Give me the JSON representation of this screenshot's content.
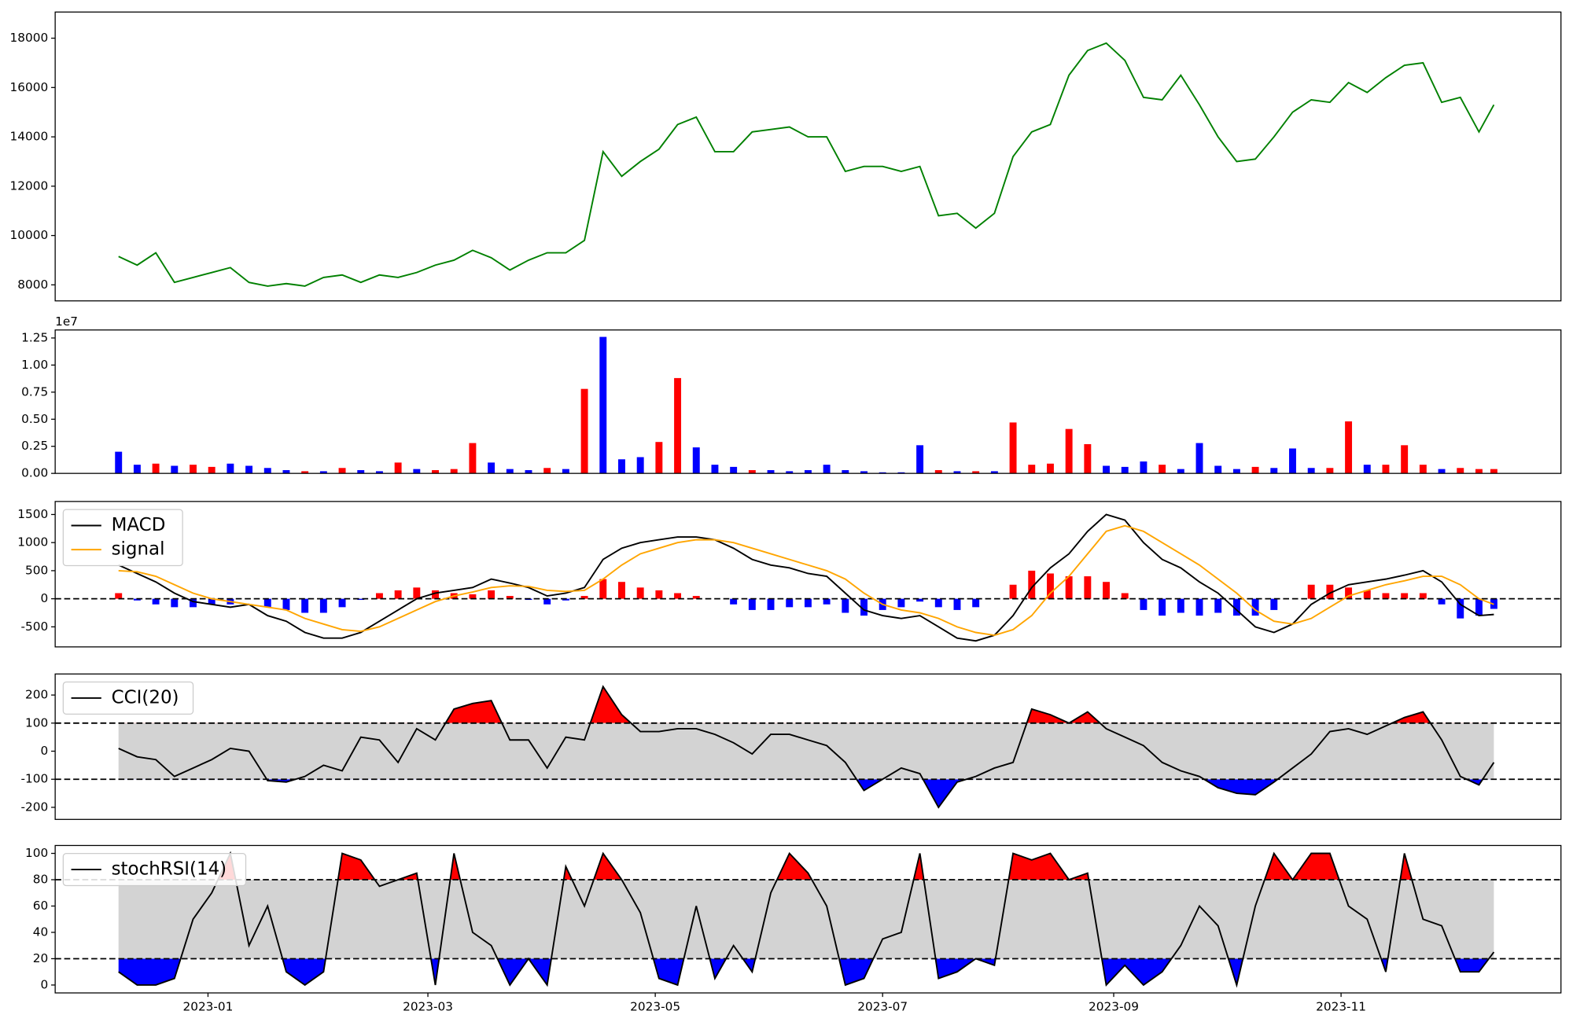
{
  "chart_data": [
    {
      "type": "line",
      "x": [
        "2022-12-08",
        "2022-12-13",
        "2022-12-18",
        "2022-12-23",
        "2022-12-28",
        "2023-01-02",
        "2023-01-07",
        "2023-01-12",
        "2023-01-17",
        "2023-01-22",
        "2023-01-27",
        "2023-02-01",
        "2023-02-06",
        "2023-02-11",
        "2023-02-16",
        "2023-02-21",
        "2023-02-26",
        "2023-03-03",
        "2023-03-08",
        "2023-03-13",
        "2023-03-18",
        "2023-03-23",
        "2023-03-28",
        "2023-04-02",
        "2023-04-07",
        "2023-04-12",
        "2023-04-17",
        "2023-04-22",
        "2023-04-27",
        "2023-05-02",
        "2023-05-07",
        "2023-05-12",
        "2023-05-17",
        "2023-05-22",
        "2023-05-27",
        "2023-06-01",
        "2023-06-06",
        "2023-06-11",
        "2023-06-16",
        "2023-06-21",
        "2023-06-26",
        "2023-07-01",
        "2023-07-06",
        "2023-07-11",
        "2023-07-16",
        "2023-07-21",
        "2023-07-26",
        "2023-07-31",
        "2023-08-05",
        "2023-08-10",
        "2023-08-15",
        "2023-08-20",
        "2023-08-25",
        "2023-08-30",
        "2023-09-04",
        "2023-09-09",
        "2023-09-14",
        "2023-09-19",
        "2023-09-24",
        "2023-09-29",
        "2023-10-04",
        "2023-10-09",
        "2023-10-14",
        "2023-10-19",
        "2023-10-24",
        "2023-10-29",
        "2023-11-03",
        "2023-11-08",
        "2023-11-13",
        "2023-11-18",
        "2023-11-23",
        "2023-11-28",
        "2023-12-03",
        "2023-12-08",
        "2023-12-12"
      ],
      "xlim": [
        "2022-11-21",
        "2023-12-30"
      ],
      "xticks": [
        {
          "value": "2023-01-01",
          "label": "2023-01"
        },
        {
          "value": "2023-03-01",
          "label": "2023-03"
        },
        {
          "value": "2023-05-01",
          "label": "2023-05"
        },
        {
          "value": "2023-07-01",
          "label": "2023-07"
        },
        {
          "value": "2023-09-01",
          "label": "2023-09"
        },
        {
          "value": "2023-11-01",
          "label": "2023-11"
        }
      ],
      "series": [
        {
          "color": "green",
          "values": [
            9150,
            8800,
            9300,
            8100,
            8300,
            8500,
            8700,
            8100,
            7950,
            8050,
            7950,
            8300,
            8400,
            8100,
            8400,
            8300,
            8500,
            8800,
            9000,
            9400,
            9100,
            8600,
            9000,
            9300,
            9300,
            9800,
            13400,
            12400,
            13000,
            13500,
            14500,
            14800,
            13400,
            13400,
            14200,
            14300,
            14400,
            14000,
            14000,
            12600,
            12800,
            12800,
            12600,
            12800,
            10800,
            10900,
            10300,
            10900,
            13200,
            14200,
            14500,
            16500,
            17500,
            17800,
            17100,
            15600,
            15500,
            16500,
            15300,
            14000,
            13000,
            13100,
            14000,
            15000,
            15500,
            15400,
            16200,
            15800,
            16400,
            16900,
            17000,
            15400,
            15600,
            14200,
            15300
          ]
        }
      ],
      "ylim": [
        7350,
        19060
      ],
      "yticks": [
        8000,
        10000,
        12000,
        14000,
        16000,
        18000
      ]
    },
    {
      "type": "bar",
      "offset_label": "1e7",
      "values": [
        0.2,
        0.08,
        0.09,
        0.07,
        0.08,
        0.06,
        0.09,
        0.07,
        0.05,
        0.03,
        0.02,
        0.02,
        0.05,
        0.03,
        0.02,
        0.1,
        0.04,
        0.03,
        0.04,
        0.28,
        0.1,
        0.04,
        0.03,
        0.05,
        0.04,
        0.78,
        1.26,
        0.13,
        0.15,
        0.29,
        0.88,
        0.24,
        0.08,
        0.06,
        0.03,
        0.03,
        0.02,
        0.03,
        0.08,
        0.03,
        0.02,
        0.01,
        0.01,
        0.26,
        0.03,
        0.02,
        0.02,
        0.02,
        0.47,
        0.08,
        0.09,
        0.41,
        0.27,
        0.07,
        0.06,
        0.11,
        0.08,
        0.04,
        0.28,
        0.07,
        0.04,
        0.06,
        0.05,
        0.23,
        0.05,
        0.05,
        0.48,
        0.08,
        0.08,
        0.26,
        0.08,
        0.04,
        0.05,
        0.04,
        0.04
      ],
      "colors": [
        "blue",
        "blue",
        "red",
        "blue",
        "red",
        "red",
        "blue",
        "blue",
        "blue",
        "blue",
        "red",
        "blue",
        "red",
        "blue",
        "blue",
        "red",
        "blue",
        "red",
        "red",
        "red",
        "blue",
        "blue",
        "blue",
        "red",
        "blue",
        "red",
        "blue",
        "blue",
        "blue",
        "red",
        "red",
        "blue",
        "blue",
        "blue",
        "red",
        "blue",
        "blue",
        "blue",
        "blue",
        "blue",
        "blue",
        "blue",
        "blue",
        "blue",
        "red",
        "blue",
        "red",
        "blue",
        "red",
        "red",
        "red",
        "red",
        "red",
        "blue",
        "blue",
        "blue",
        "red",
        "blue",
        "blue",
        "blue",
        "blue",
        "red",
        "blue",
        "blue",
        "blue",
        "red",
        "red",
        "blue",
        "red",
        "red",
        "red",
        "blue",
        "red",
        "red",
        "red"
      ],
      "ylim": [
        0,
        1.324
      ],
      "yticks": [
        {
          "value": 0,
          "label": "0.00"
        },
        {
          "value": 0.25,
          "label": "0.25"
        },
        {
          "value": 0.5,
          "label": "0.50"
        },
        {
          "value": 0.75,
          "label": "0.75"
        },
        {
          "value": 1,
          "label": "1.00"
        },
        {
          "value": 1.25,
          "label": "1.25"
        }
      ]
    },
    {
      "type": "line",
      "legend": "upper left",
      "series": [
        {
          "name": "MACD",
          "color": "black",
          "values": [
            600,
            450,
            300,
            100,
            -50,
            -100,
            -150,
            -100,
            -300,
            -400,
            -600,
            -700,
            -700,
            -600,
            -400,
            -200,
            0,
            100,
            150,
            200,
            350,
            280,
            200,
            50,
            100,
            200,
            700,
            900,
            1000,
            1050,
            1100,
            1100,
            1050,
            900,
            700,
            600,
            550,
            450,
            400,
            100,
            -200,
            -300,
            -350,
            -300,
            -500,
            -700,
            -750,
            -650,
            -300,
            200,
            550,
            800,
            1200,
            1500,
            1400,
            1000,
            700,
            550,
            300,
            100,
            -200,
            -500,
            -600,
            -450,
            -100,
            100,
            250,
            300,
            350,
            420,
            500,
            300,
            -100,
            -300,
            -280
          ]
        },
        {
          "name": "signal",
          "color": "orange",
          "values": [
            500,
            480,
            400,
            250,
            100,
            0,
            -50,
            -100,
            -150,
            -200,
            -350,
            -450,
            -550,
            -580,
            -500,
            -350,
            -200,
            -50,
            50,
            120,
            200,
            230,
            220,
            150,
            130,
            150,
            350,
            600,
            800,
            900,
            1000,
            1050,
            1050,
            1000,
            900,
            800,
            700,
            600,
            500,
            350,
            100,
            -100,
            -200,
            -250,
            -350,
            -500,
            -600,
            -650,
            -550,
            -300,
            100,
            400,
            800,
            1200,
            1300,
            1200,
            1000,
            800,
            600,
            350,
            100,
            -200,
            -400,
            -450,
            -350,
            -150,
            50,
            150,
            250,
            320,
            400,
            400,
            250,
            0,
            -100
          ]
        }
      ],
      "histogram": {
        "up_color": "red",
        "down_color": "blue",
        "values": [
          100,
          -30,
          -100,
          -150,
          -150,
          -100,
          -100,
          0,
          -150,
          -200,
          -250,
          -250,
          -150,
          -20,
          100,
          150,
          200,
          150,
          100,
          80,
          150,
          50,
          -20,
          -100,
          -30,
          50,
          350,
          300,
          200,
          150,
          100,
          50,
          0,
          -100,
          -200,
          -200,
          -150,
          -150,
          -100,
          -250,
          -300,
          -200,
          -150,
          -50,
          -150,
          -200,
          -150,
          0,
          250,
          500,
          450,
          400,
          400,
          300,
          100,
          -200,
          -300,
          -250,
          -300,
          -250,
          -300,
          -300,
          -200,
          0,
          250,
          250,
          200,
          150,
          100,
          100,
          100,
          -100,
          -350,
          -300,
          -180
        ]
      },
      "levels": [
        0
      ],
      "ylim": [
        -857,
        1732
      ],
      "yticks": [
        -500,
        0,
        500,
        1000,
        1500
      ]
    },
    {
      "type": "line",
      "legend": "upper left",
      "series": [
        {
          "name": "CCI(20)",
          "color": "black",
          "values": [
            10,
            -20,
            -30,
            -90,
            -60,
            -30,
            10,
            0,
            -105,
            -110,
            -90,
            -50,
            -70,
            50,
            40,
            -40,
            80,
            40,
            150,
            170,
            180,
            40,
            40,
            -60,
            50,
            40,
            230,
            130,
            70,
            70,
            80,
            80,
            60,
            30,
            -10,
            60,
            60,
            40,
            20,
            -40,
            -140,
            -100,
            -60,
            -80,
            -200,
            -110,
            -90,
            -60,
            -40,
            150,
            130,
            100,
            140,
            80,
            50,
            20,
            -40,
            -70,
            -90,
            -130,
            -150,
            -155,
            -110,
            -60,
            -10,
            70,
            80,
            60,
            90,
            120,
            140,
            40,
            -90,
            -120,
            -40
          ]
        }
      ],
      "levels": [
        -100,
        100
      ],
      "band_color": "lightgray",
      "upper_fill": "red",
      "lower_fill": "blue",
      "ylim": [
        -243,
        275
      ],
      "yticks": [
        -200,
        -100,
        0,
        100,
        200
      ]
    },
    {
      "type": "line",
      "legend": "upper left",
      "series": [
        {
          "name": "stochRSI(14)",
          "color": "black",
          "values": [
            10,
            0,
            0,
            5,
            50,
            70,
            100,
            30,
            60,
            10,
            0,
            10,
            100,
            95,
            75,
            80,
            85,
            0,
            100,
            40,
            30,
            0,
            20,
            0,
            90,
            60,
            100,
            80,
            55,
            5,
            0,
            60,
            5,
            30,
            10,
            70,
            100,
            85,
            60,
            0,
            5,
            35,
            40,
            100,
            5,
            10,
            20,
            15,
            100,
            95,
            100,
            80,
            85,
            0,
            15,
            0,
            10,
            30,
            60,
            45,
            0,
            60,
            100,
            80,
            100,
            100,
            60,
            50,
            10,
            100,
            50,
            45,
            10,
            10,
            25
          ]
        }
      ],
      "levels": [
        20,
        80
      ],
      "band_color": "lightgray",
      "upper_fill": "red",
      "lower_fill": "blue",
      "ylim": [
        -6,
        106
      ],
      "yticks": [
        0,
        20,
        40,
        60,
        80,
        100
      ]
    }
  ]
}
